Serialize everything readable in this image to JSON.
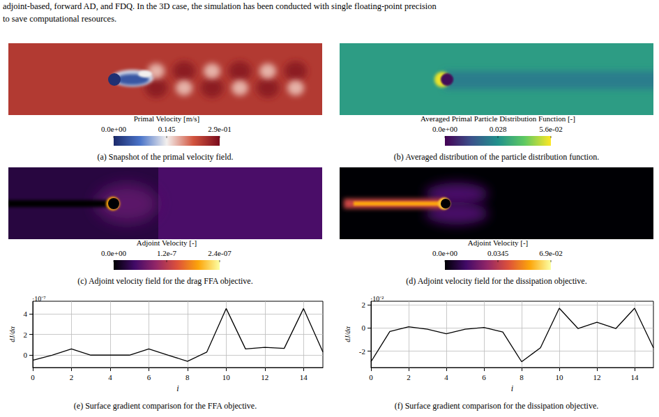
{
  "header_lines": [
    "adjoint-based, forward AD, and FDQ. In the 3D case, the simulation has been conducted with single floating-point precision",
    "to save computational resources."
  ],
  "panels": [
    {
      "caption": "(a) Snapshot of the primal velocity field.",
      "colorbar": {
        "label": "Primal Velocity [m/s]",
        "range": [
          0,
          0.29
        ],
        "ticks": [
          {
            "value": 0,
            "label": "0.0e+00"
          },
          0.145,
          {
            "value": 0.29,
            "label": "2.9e-01"
          }
        ],
        "colors": [
          "#1b2a6b",
          "#4a74c9",
          "#f3f0ee",
          "#d2553f",
          "#7a0b1c"
        ]
      }
    },
    {
      "caption": "(b) Averaged distribution of the particle distribution function.",
      "colorbar": {
        "label": "Averaged Primal Particle Distribution Function [-]",
        "range": [
          0,
          0.056
        ],
        "ticks": [
          {
            "value": 0,
            "label": "0.0e+00"
          },
          0.028,
          {
            "value": 0.056,
            "label": "5.6e-02"
          }
        ],
        "colors": [
          "#440154",
          "#3b528b",
          "#21918c",
          "#5ec962",
          "#fde725"
        ]
      }
    },
    {
      "caption": "(c) Adjoint velocity field for the drag FFA objective.",
      "colorbar": {
        "label": "Adjoint Velocity [-]",
        "range": [
          0,
          2.4e-07
        ],
        "ticks": [
          {
            "value": 0,
            "label": "0.0e+00"
          },
          {
            "value": 1.2e-07,
            "label": "1.2e-7"
          },
          {
            "value": 2.4e-07,
            "label": "2.4e-07"
          }
        ],
        "colors": [
          "#000004",
          "#420a68",
          "#932667",
          "#dd513a",
          "#fca50a",
          "#fcffa4"
        ]
      }
    },
    {
      "caption": "(d) Adjoint velocity field for the dissipation objective.",
      "colorbar": {
        "label": "Adjoint Velocity [-]",
        "range": [
          0,
          0.069
        ],
        "ticks": [
          {
            "value": 0,
            "label": "0.0e+00"
          },
          0.0345,
          {
            "value": 0.069,
            "label": "6.9e-02"
          }
        ],
        "colors": [
          "#000004",
          "#420a68",
          "#932667",
          "#dd513a",
          "#fca50a",
          "#fcffa4"
        ]
      }
    }
  ],
  "chart_data": [
    {
      "type": "line",
      "caption": "(e) Surface gradient comparison for the FFA objective.",
      "annotation": "·10⁻⁷",
      "x_label": "i",
      "y_label": "dJ/dα",
      "x": [
        0,
        1,
        2,
        3,
        4,
        5,
        6,
        7,
        8,
        9,
        10,
        11,
        12,
        13,
        14,
        15
      ],
      "values": [
        -0.5,
        0,
        0.6,
        0,
        0,
        0,
        0.6,
        0,
        -0.6,
        0.3,
        4.5,
        0.6,
        0.75,
        0.65,
        4.5,
        0.3
      ],
      "xlim": [
        0,
        15
      ],
      "xticks": [
        0,
        2,
        4,
        6,
        8,
        10,
        12,
        14
      ],
      "ylim": [
        -1.2,
        5.2
      ],
      "yticks": [
        0,
        2,
        4
      ],
      "color": "#000000",
      "marker": "none",
      "grid": true
    },
    {
      "type": "line",
      "caption": "(f) Surface gradient comparison for the dissipation objective.",
      "annotation": "·10⁻²",
      "x_label": "i",
      "y_label": "dJ/dα",
      "x": [
        0,
        1,
        2,
        3,
        4,
        5,
        6,
        7,
        8,
        9,
        10,
        11,
        12,
        13,
        14,
        15
      ],
      "values": [
        -2.9,
        -0.3,
        0.1,
        -0.1,
        -0.5,
        -0.1,
        0.05,
        -0.35,
        -2.9,
        -1.7,
        1.7,
        -0.05,
        0.5,
        -0.05,
        1.7,
        -1.7
      ],
      "xlim": [
        0,
        15
      ],
      "xticks": [
        0,
        2,
        4,
        6,
        8,
        10,
        12,
        14
      ],
      "ylim": [
        -3.4,
        2.3
      ],
      "yticks": [
        -2,
        0,
        2
      ],
      "color": "#000000",
      "marker": "none",
      "grid": true
    }
  ]
}
